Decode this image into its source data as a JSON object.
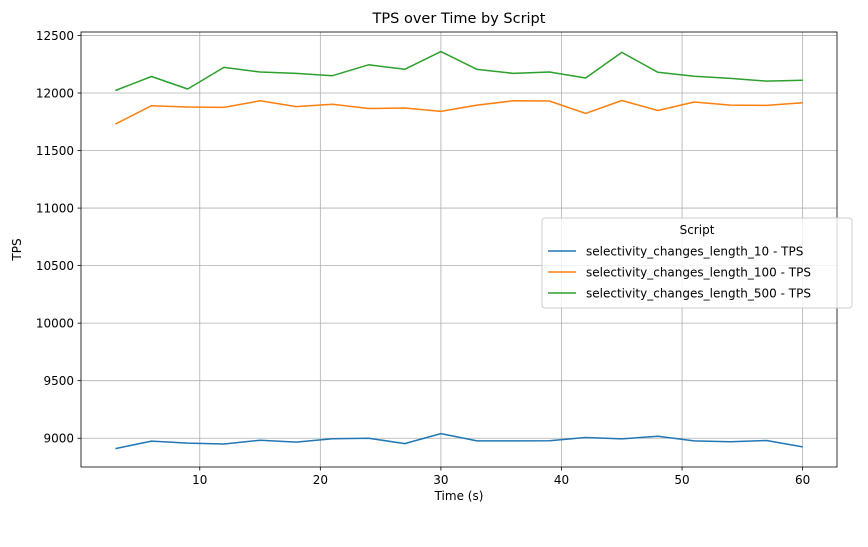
{
  "chart_data": {
    "type": "line",
    "title": "TPS over Time by Script",
    "xlabel": "Time (s)",
    "ylabel": "TPS",
    "xlim": [
      0.15,
      62.85
    ],
    "ylim": [
      8750,
      12530
    ],
    "xticks": [
      10,
      20,
      30,
      40,
      50,
      60
    ],
    "yticks": [
      9000,
      9500,
      10000,
      10500,
      11000,
      11500,
      12000,
      12500
    ],
    "grid": true,
    "legend": {
      "title": "Script",
      "placement": "center-right"
    },
    "x": [
      3,
      6,
      9,
      12,
      15,
      18,
      21,
      24,
      27,
      30,
      33,
      36,
      39,
      42,
      45,
      48,
      51,
      54,
      57,
      60
    ],
    "series": [
      {
        "name": "selectivity_changes_length_10 - TPS",
        "color": "#1f77b4",
        "values": [
          8910,
          8975,
          8958,
          8950,
          8983,
          8966,
          8996,
          9000,
          8953,
          9040,
          8977,
          8977,
          8978,
          9006,
          8994,
          9018,
          8977,
          8970,
          8980,
          8925
        ]
      },
      {
        "name": "selectivity_changes_length_100 - TPS",
        "color": "#ff7f0e",
        "values": [
          11730,
          11890,
          11878,
          11875,
          11932,
          11882,
          11903,
          11865,
          11870,
          11840,
          11895,
          11932,
          11930,
          11823,
          11935,
          11848,
          11922,
          11895,
          11892,
          11915
        ]
      },
      {
        "name": "selectivity_changes_length_500 - TPS",
        "color": "#2ca02c",
        "values": [
          12022,
          12143,
          12035,
          12222,
          12182,
          12170,
          12150,
          12245,
          12206,
          12360,
          12205,
          12170,
          12182,
          12130,
          12353,
          12180,
          12145,
          12127,
          12103,
          12110
        ]
      }
    ]
  }
}
